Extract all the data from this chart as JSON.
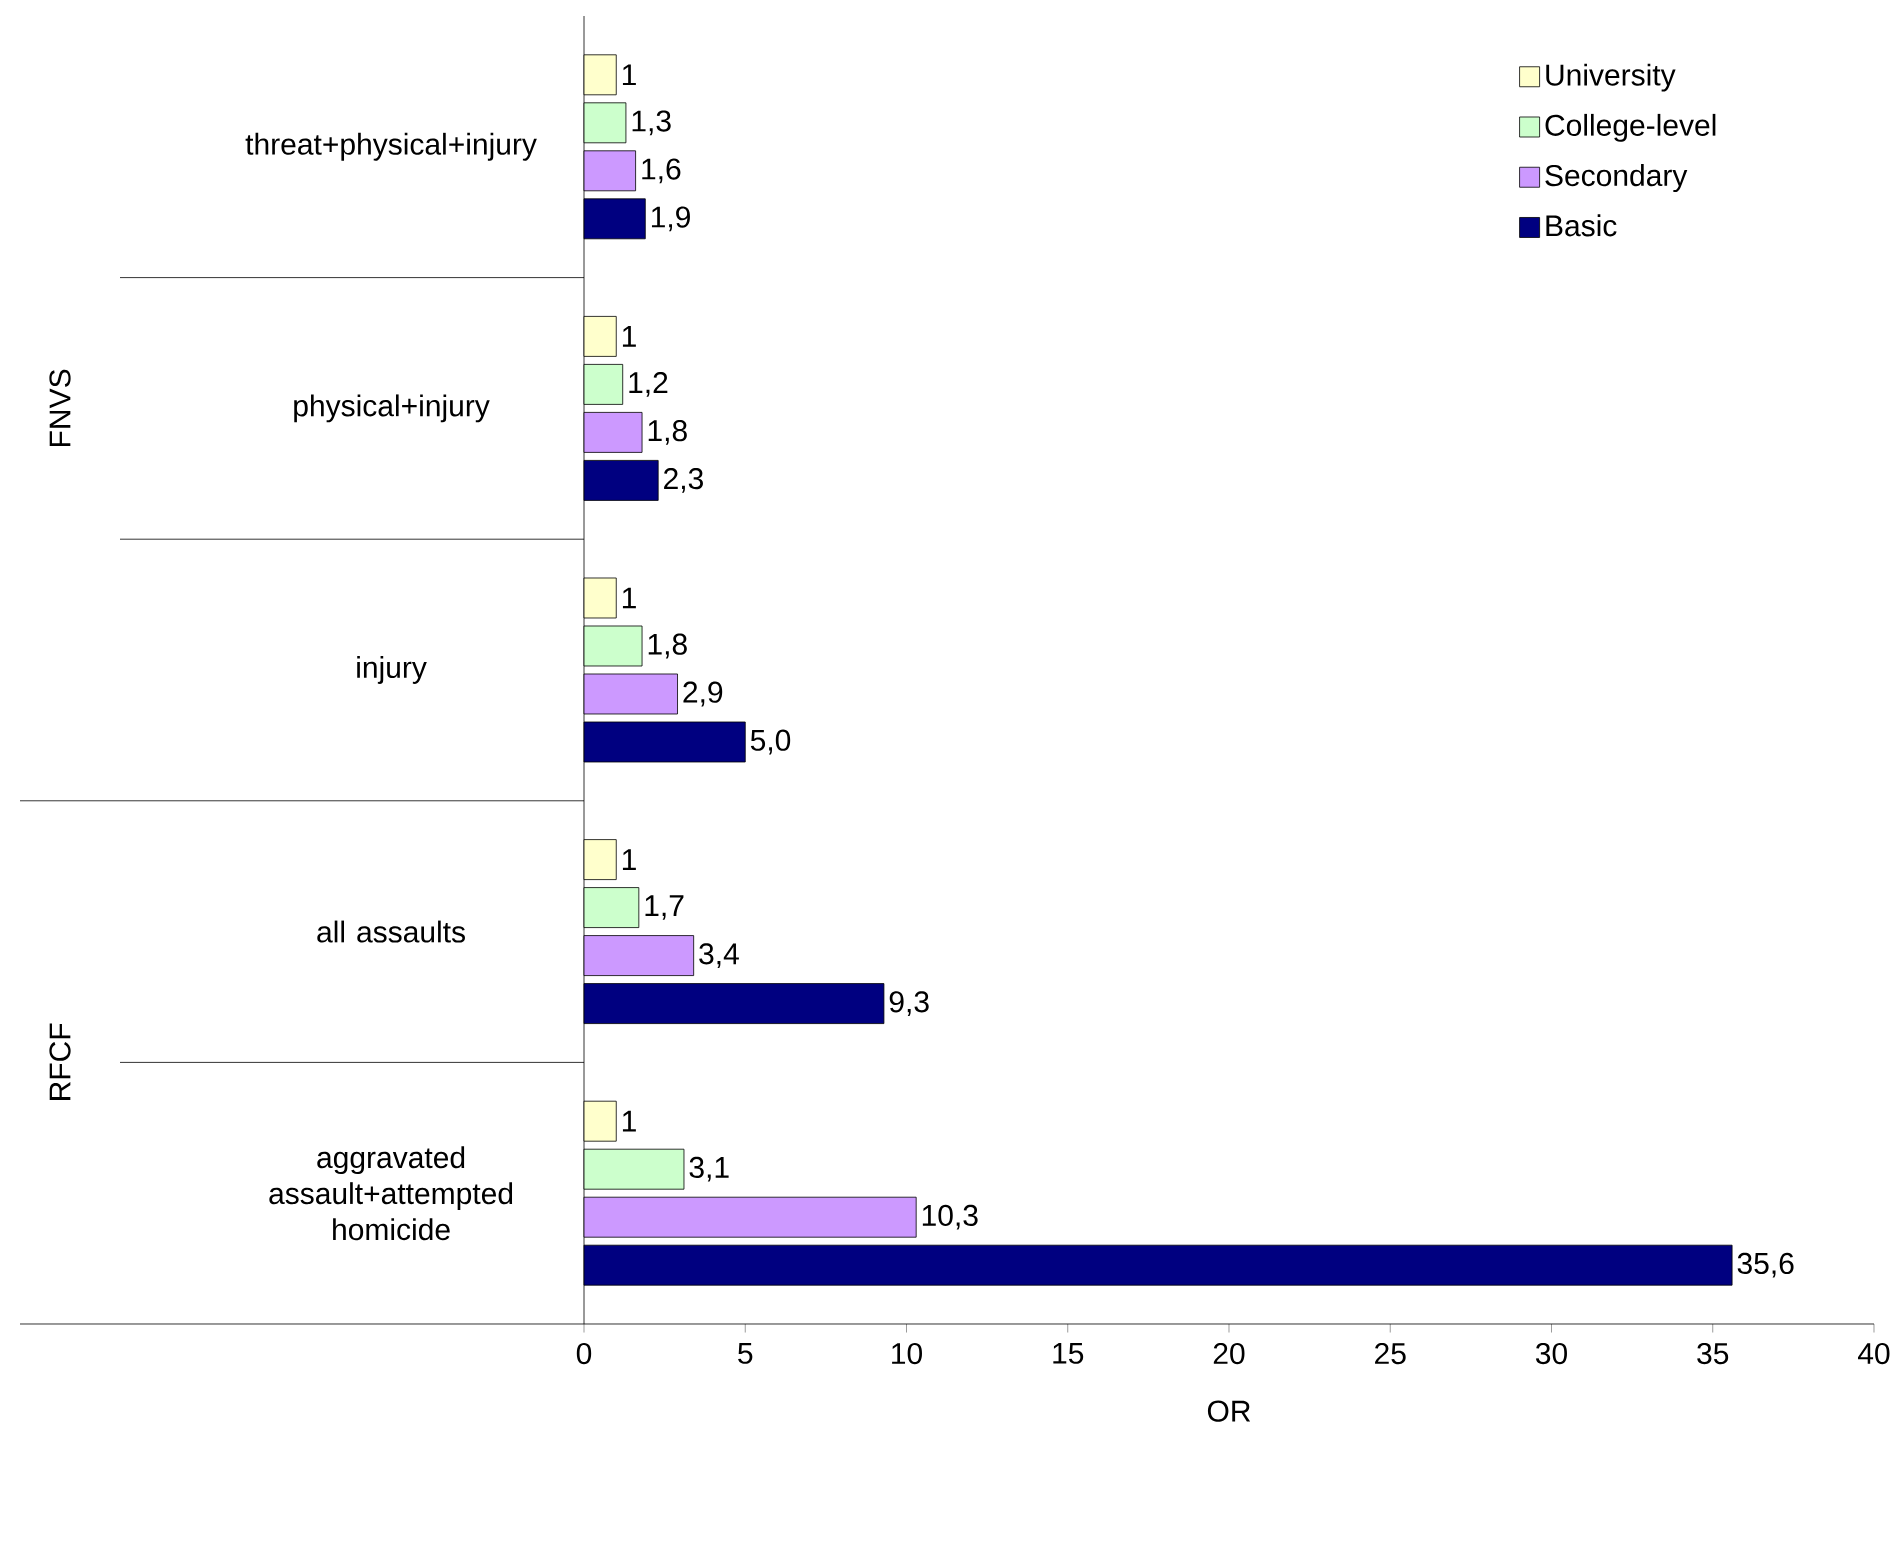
{
  "chart_data": {
    "type": "bar",
    "orientation": "horizontal",
    "xlabel": "OR",
    "categories": [
      "threat+physical+injury",
      "physical+injury",
      "injury",
      "all assaults",
      "aggravated assault+attempted homicide"
    ],
    "series": [
      {
        "name": "University",
        "color": "#ffffcc",
        "values": [
          1,
          1,
          1,
          1,
          1
        ],
        "value_labels": [
          "1",
          "1",
          "1",
          "1",
          "1"
        ]
      },
      {
        "name": "College-level",
        "color": "#ccffcc",
        "values": [
          1.3,
          1.2,
          1.8,
          1.7,
          3.1
        ],
        "value_labels": [
          "1,3",
          "1,2",
          "1,8",
          "1,7",
          "3,1"
        ]
      },
      {
        "name": "Secondary",
        "color": "#cc99ff",
        "values": [
          1.6,
          1.8,
          2.9,
          3.4,
          10.3
        ],
        "value_labels": [
          "1,6",
          "1,8",
          "2,9",
          "3,4",
          "10,3"
        ]
      },
      {
        "name": "Basic",
        "color": "#000080",
        "values": [
          1.9,
          2.3,
          5.0,
          9.3,
          35.6
        ],
        "value_labels": [
          "1,9",
          "2,3",
          "5,0",
          "9,3",
          "35,6"
        ]
      }
    ],
    "xlim": [
      0,
      40
    ],
    "xticks": [
      0,
      5,
      10,
      15,
      20,
      25,
      30,
      35,
      40
    ],
    "annotations": [
      "FNVS",
      "RFCF"
    ],
    "legend": "top right",
    "grid": false
  }
}
